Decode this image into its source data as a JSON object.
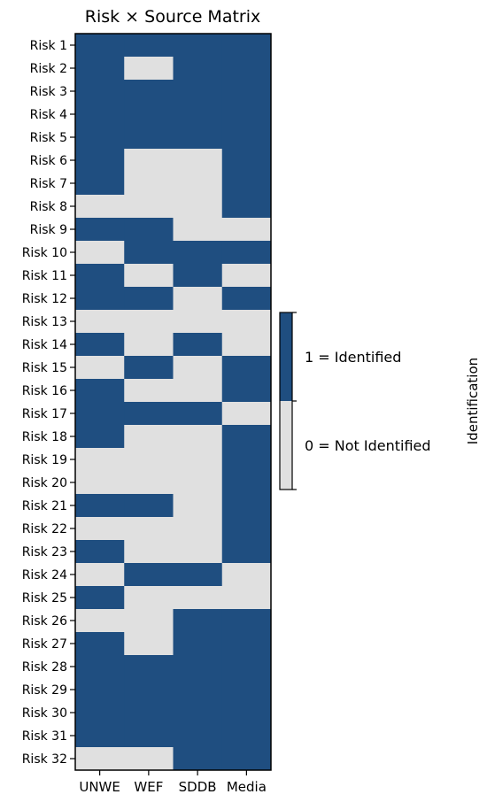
{
  "chart_data": {
    "type": "heatmap",
    "title": "Risk × Source Matrix",
    "rows": [
      "Risk 1",
      "Risk 2",
      "Risk 3",
      "Risk 4",
      "Risk 5",
      "Risk 6",
      "Risk 7",
      "Risk 8",
      "Risk 9",
      "Risk 10",
      "Risk 11",
      "Risk 12",
      "Risk 13",
      "Risk 14",
      "Risk 15",
      "Risk 16",
      "Risk 17",
      "Risk 18",
      "Risk 19",
      "Risk 20",
      "Risk 21",
      "Risk 22",
      "Risk 23",
      "Risk 24",
      "Risk 25",
      "Risk 26",
      "Risk 27",
      "Risk 28",
      "Risk 29",
      "Risk 30",
      "Risk 31",
      "Risk 32"
    ],
    "columns": [
      "UNWE",
      "WEF",
      "SDDB",
      "Media"
    ],
    "values": [
      [
        1,
        1,
        1,
        1
      ],
      [
        1,
        0,
        1,
        1
      ],
      [
        1,
        1,
        1,
        1
      ],
      [
        1,
        1,
        1,
        1
      ],
      [
        1,
        1,
        1,
        1
      ],
      [
        1,
        0,
        0,
        1
      ],
      [
        1,
        0,
        0,
        1
      ],
      [
        0,
        0,
        0,
        1
      ],
      [
        1,
        1,
        0,
        0
      ],
      [
        0,
        1,
        1,
        1
      ],
      [
        1,
        0,
        1,
        0
      ],
      [
        1,
        1,
        0,
        1
      ],
      [
        0,
        0,
        0,
        0
      ],
      [
        1,
        0,
        1,
        0
      ],
      [
        0,
        1,
        0,
        1
      ],
      [
        1,
        0,
        0,
        1
      ],
      [
        1,
        1,
        1,
        0
      ],
      [
        1,
        0,
        0,
        1
      ],
      [
        0,
        0,
        0,
        1
      ],
      [
        0,
        0,
        0,
        1
      ],
      [
        1,
        1,
        0,
        1
      ],
      [
        0,
        0,
        0,
        1
      ],
      [
        1,
        0,
        0,
        1
      ],
      [
        0,
        1,
        1,
        0
      ],
      [
        1,
        0,
        0,
        0
      ],
      [
        0,
        0,
        1,
        1
      ],
      [
        1,
        0,
        1,
        1
      ],
      [
        1,
        1,
        1,
        1
      ],
      [
        1,
        1,
        1,
        1
      ],
      [
        1,
        1,
        1,
        1
      ],
      [
        1,
        1,
        1,
        1
      ],
      [
        0,
        0,
        1,
        1
      ]
    ],
    "colorbar": {
      "label": "Identification",
      "ticks": [
        {
          "value": 1,
          "label": "1 = Identified"
        },
        {
          "value": 0,
          "label": "0 = Not Identified"
        }
      ]
    },
    "colors": {
      "identified": "#1f4e80",
      "not_identified": "#e0e0e0"
    }
  }
}
